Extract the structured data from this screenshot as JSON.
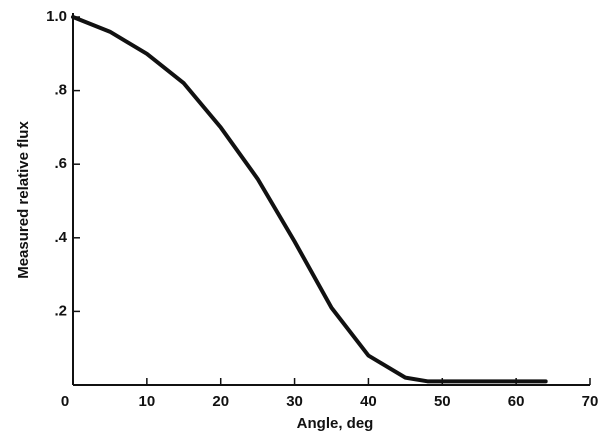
{
  "chart_data": {
    "type": "line",
    "x_label": "Angle, deg",
    "y_label": "Measured relative flux",
    "x": [
      0,
      5,
      10,
      15,
      20,
      25,
      30,
      35,
      40,
      45,
      48,
      55,
      60,
      64
    ],
    "series": [
      {
        "color": "#111111",
        "values": [
          1.0,
          0.96,
          0.9,
          0.82,
          0.7,
          0.56,
          0.39,
          0.21,
          0.08,
          0.02,
          0.01,
          0.01,
          0.01,
          0.01
        ]
      }
    ],
    "xlim": [
      0,
      70
    ],
    "ylim": [
      0,
      1.0
    ],
    "xticks": [
      0,
      10,
      20,
      30,
      40,
      50,
      60,
      70
    ],
    "yticks": [
      {
        "value": 0.2,
        "label": ".2"
      },
      {
        "value": 0.4,
        "label": ".4"
      },
      {
        "value": 0.6,
        "label": ".6"
      },
      {
        "value": 0.8,
        "label": ".8"
      },
      {
        "value": 1.0,
        "label": "1.0"
      }
    ]
  }
}
